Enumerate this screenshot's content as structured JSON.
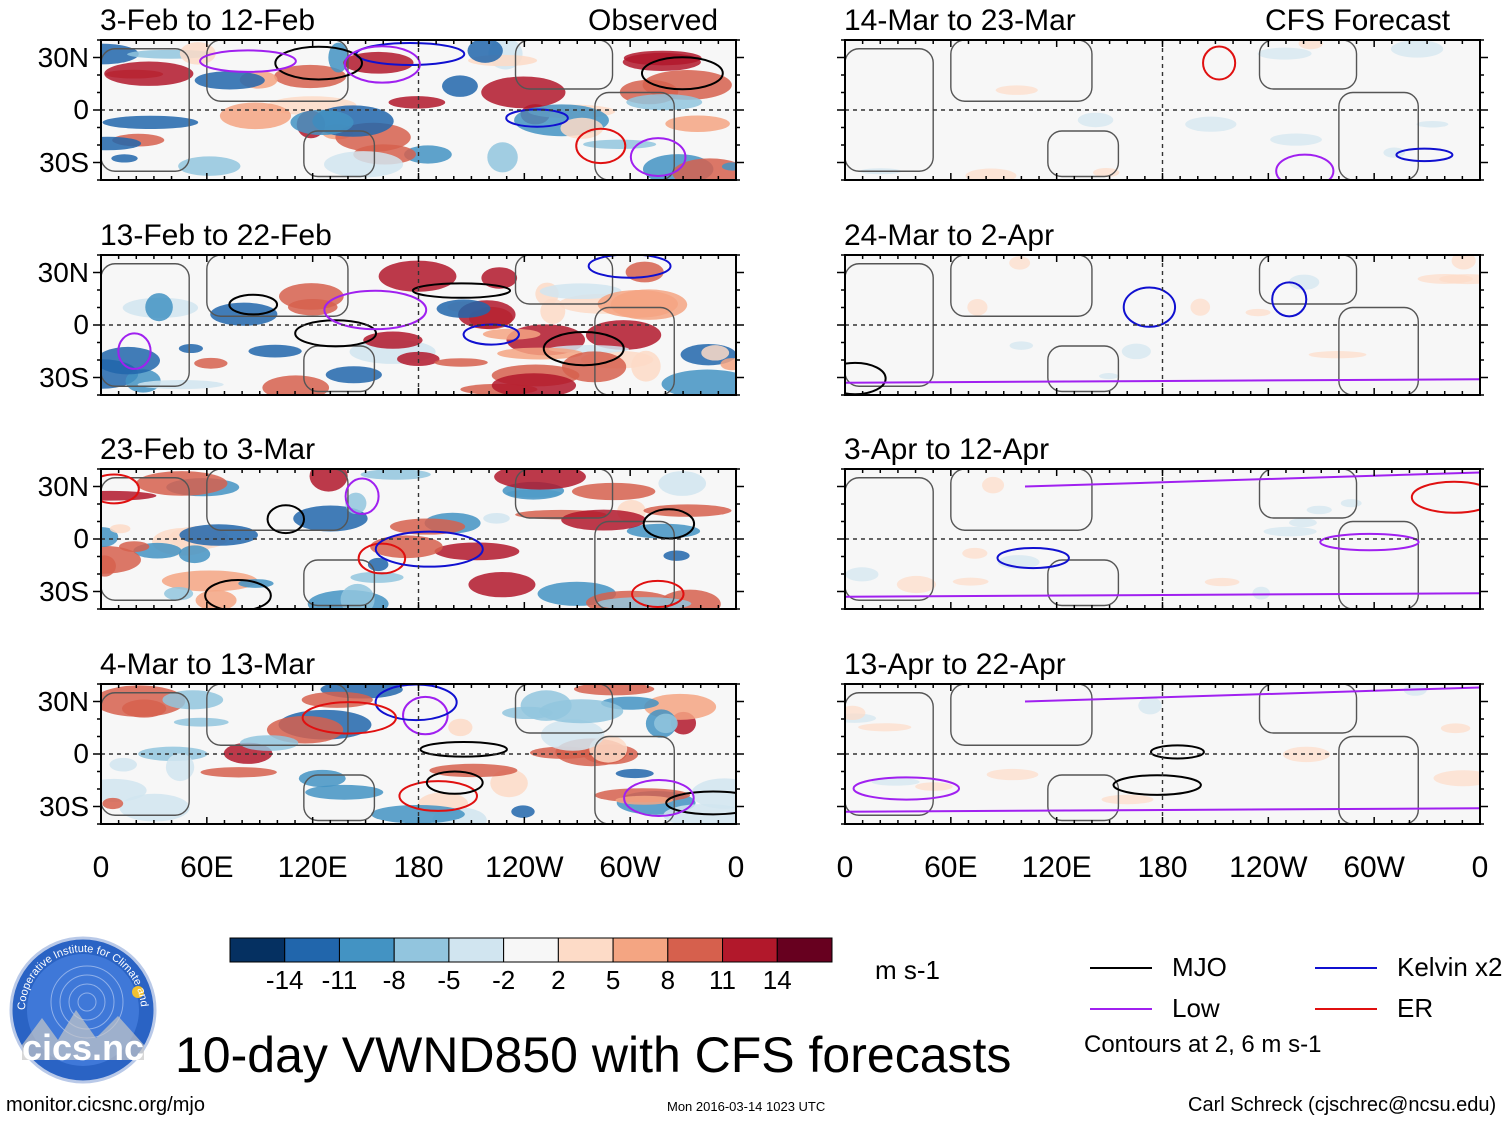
{
  "chart_data": {
    "type": "heatmap",
    "title": "10-day VWND850 with CFS forecasts",
    "variable": "VWND850",
    "units": "m s-1",
    "x_axis": {
      "ticks": [
        "0",
        "60E",
        "120E",
        "180",
        "120W",
        "60W",
        "0"
      ],
      "range_deg_east": [
        0,
        360
      ]
    },
    "y_axis": {
      "ticks": [
        "30N",
        "0",
        "30S"
      ],
      "range_deg_lat": [
        -40,
        40
      ]
    },
    "columns": [
      {
        "label": "Observed",
        "panels": [
          {
            "period": "3-Feb to 12-Feb"
          },
          {
            "period": "13-Feb to 22-Feb"
          },
          {
            "period": "23-Feb to 3-Mar"
          },
          {
            "period": "4-Mar to 13-Mar"
          }
        ]
      },
      {
        "label": "CFS Forecast",
        "panels": [
          {
            "period": "14-Mar to 23-Mar"
          },
          {
            "period": "24-Mar to 2-Apr"
          },
          {
            "period": "3-Apr to 12-Apr"
          },
          {
            "period": "13-Apr to 22-Apr"
          }
        ]
      }
    ],
    "colorbar": {
      "labels": [
        "-14",
        "-11",
        "-8",
        "-5",
        "-2",
        "2",
        "5",
        "8",
        "11",
        "14"
      ],
      "colors": [
        "#053061",
        "#2166ac",
        "#4393c3",
        "#92c5de",
        "#d1e5f0",
        "#f7f7f7",
        "#fddbc7",
        "#f4a582",
        "#d6604d",
        "#b2182b",
        "#67001f"
      ]
    },
    "contour_legend": {
      "items": [
        {
          "name": "MJO",
          "color": "#000000"
        },
        {
          "name": "Kelvin x2",
          "color": "#1010d0"
        },
        {
          "name": "Low",
          "color": "#a020f0"
        },
        {
          "name": "ER",
          "color": "#e01010"
        }
      ],
      "note": "Contours at 2, 6 m s-1"
    }
  },
  "logo": {
    "text": "cics.nc",
    "ring_text": "Cooperative Institute for Climate and Satellites"
  },
  "footer": {
    "url": "monitor.cicsnc.org/mjo",
    "timestamp": "Mon 2016-03-14 1023 UTC",
    "credit": "Carl Schreck (cjschrec@ncsu.edu)"
  }
}
